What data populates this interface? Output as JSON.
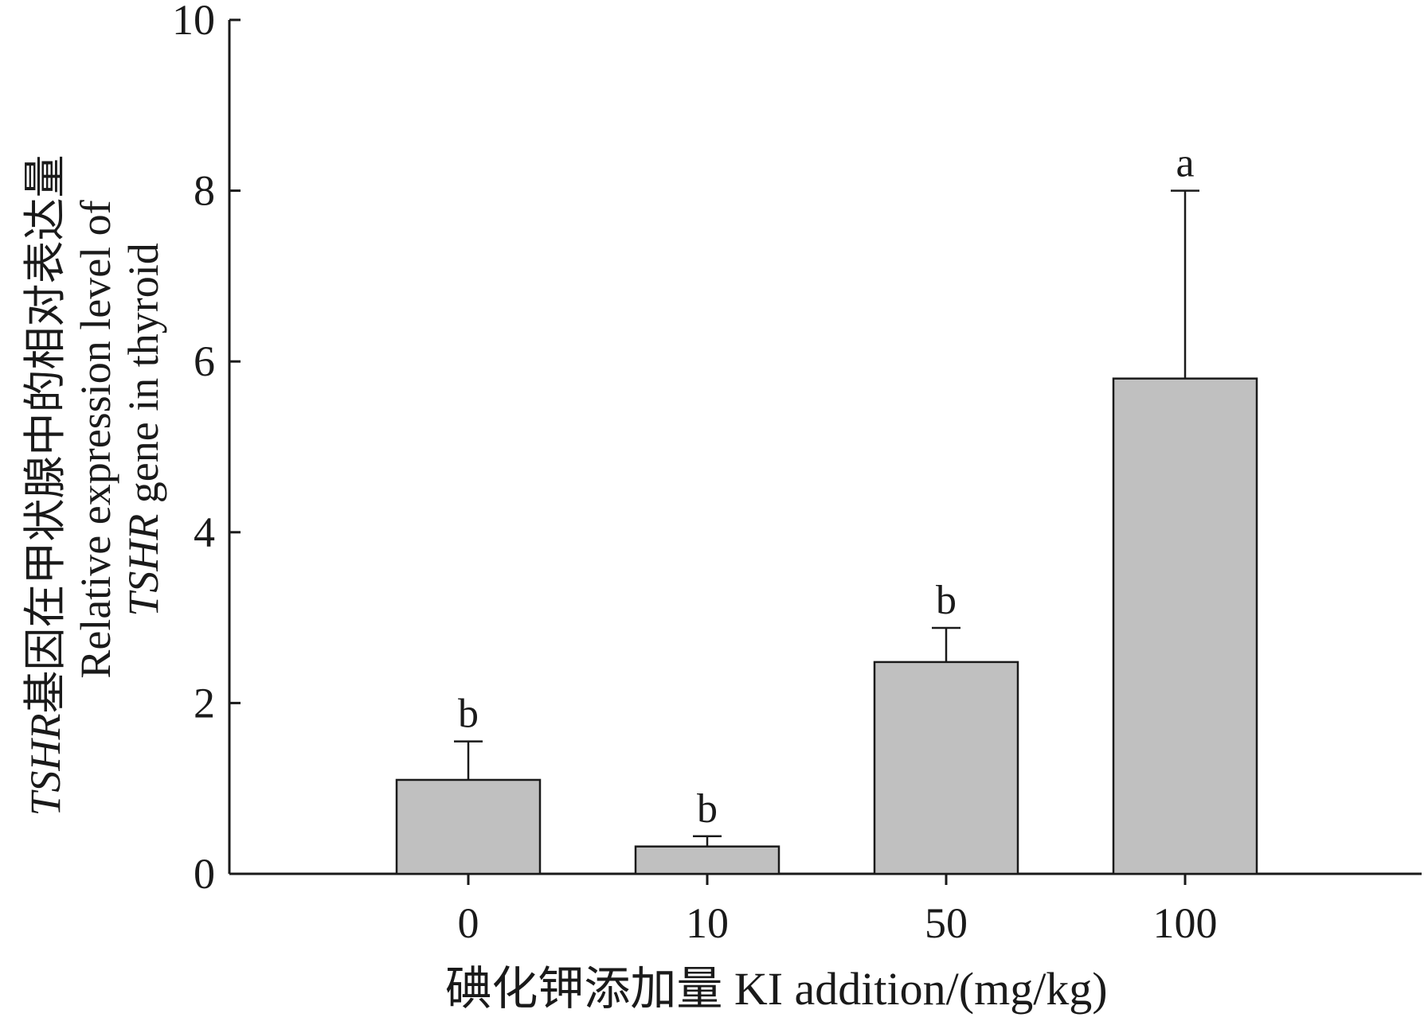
{
  "chart_data": {
    "type": "bar",
    "categories": [
      "0",
      "10",
      "50",
      "100"
    ],
    "values": [
      1.1,
      0.32,
      2.48,
      5.8
    ],
    "errors": [
      0.45,
      0.12,
      0.4,
      2.2
    ],
    "significance": [
      "b",
      "b",
      "b",
      "a"
    ],
    "xlabel": "碘化钾添加量  KI addition/(mg/kg)",
    "ylabel": {
      "line1_italic": "TSHR",
      "line1_rest": "基因在甲状腺中的相对表达量",
      "line2": "Relative expression level of",
      "line3_italic": "TSHR",
      "line3_rest": " gene in thyroid"
    },
    "yticks": [
      "0",
      "2",
      "4",
      "6",
      "8",
      "10"
    ],
    "ylim": [
      0,
      10
    ],
    "bar_color": "#c0c0c0",
    "grid": false,
    "legend": "none"
  }
}
